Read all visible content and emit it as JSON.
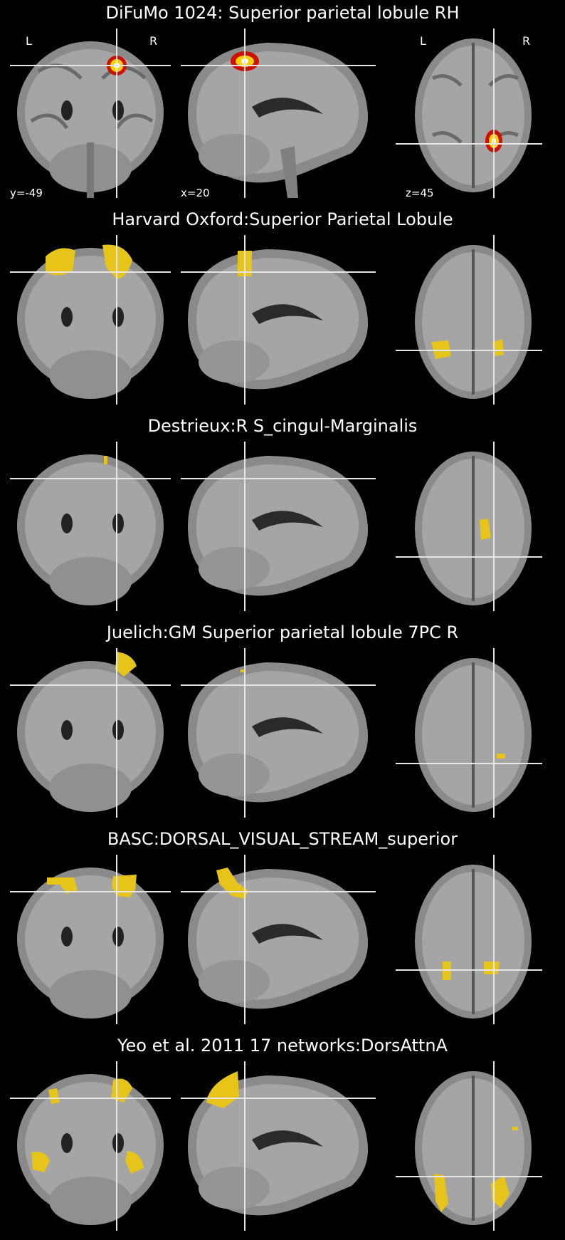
{
  "panels": [
    {
      "title": "DiFuMo 1024: Superior parietal lobule RH",
      "side_labels": {
        "left": "L",
        "right": "R"
      },
      "coords": {
        "coronal": "y=-49",
        "sagittal": "x=20",
        "axial": "z=45"
      },
      "overlay": "hot",
      "colors": {
        "overlay": "#ffd000",
        "overlay_core": "#ffffff"
      }
    },
    {
      "title": "Harvard Oxford:Superior Parietal Lobule",
      "overlay": "yellow"
    },
    {
      "title": "Destrieux:R S_cingul-Marginalis",
      "overlay": "yellow"
    },
    {
      "title": "Juelich:GM Superior parietal lobule 7PC R",
      "overlay": "yellow"
    },
    {
      "title": "BASC:DORSAL_VISUAL_STREAM_superior",
      "overlay": "yellow"
    },
    {
      "title": "Yeo et al. 2011 17 networks:DorsAttnA",
      "overlay": "yellow"
    }
  ],
  "colors": {
    "background": "#000000",
    "crosshair": "#e6e6e6",
    "atlas": "#e6c419",
    "brain": "#8a8a8a"
  }
}
